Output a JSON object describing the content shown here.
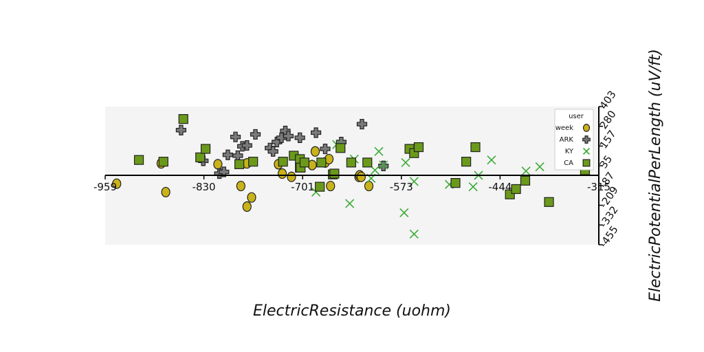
{
  "chart_data": {
    "type": "scatter",
    "title": "",
    "xlabel": "ElectricResistance (uohm)",
    "ylabel": "ElectricPotentialPerLength (uV/ft)",
    "xlim": [
      -959,
      -315
    ],
    "ylim": [
      -455,
      403
    ],
    "x_ticks": [
      "-959",
      "-830",
      "-701",
      "-573",
      "-444",
      "-315"
    ],
    "y_ticks": [
      "403",
      "280",
      "157",
      "35",
      "-87",
      "-209",
      "-332",
      "-455"
    ],
    "grid": false,
    "legend": {
      "title": "user",
      "placement": "top-right"
    },
    "series": [
      {
        "name": "week",
        "marker": "circle",
        "color": "#c9b21a",
        "x": [
          -944,
          -886,
          -880,
          -812,
          -782,
          -774,
          -774,
          -768,
          -733,
          -728,
          -716,
          -705,
          -689,
          -685,
          -672,
          -667,
          -665,
          -628,
          -627,
          -625,
          -615
        ],
        "y": [
          -55,
          70,
          -110,
          65,
          -70,
          -205,
          70,
          -145,
          65,
          10,
          -10,
          50,
          60,
          140,
          75,
          95,
          -70,
          -10,
          0,
          -10,
          -70
        ]
      },
      {
        "name": "ARK",
        "marker": "plus",
        "color": "#7a7a7a",
        "x": [
          -860,
          -831,
          -810,
          -804,
          -799,
          -789,
          -786,
          -780,
          -774,
          -763,
          -744,
          -740,
          -735,
          -729,
          -724,
          -720,
          -705,
          -684,
          -672,
          -651,
          -624,
          -596
        ],
        "y": [
          265,
          85,
          10,
          20,
          120,
          225,
          115,
          170,
          175,
          240,
          160,
          140,
          195,
          220,
          260,
          230,
          220,
          250,
          155,
          195,
          300,
          55
        ]
      },
      {
        "name": "KY",
        "marker": "x",
        "color": "#3aaa35",
        "x": [
          -684,
          -657,
          -640,
          -634,
          -612,
          -607,
          -602,
          -596,
          -569,
          -567,
          -556,
          -556,
          -510,
          -472,
          -479,
          -455,
          -410,
          -392
        ],
        "y": [
          -110,
          180,
          -185,
          95,
          -20,
          30,
          140,
          60,
          -245,
          75,
          -40,
          -385,
          -60,
          0,
          -75,
          90,
          25,
          50
        ]
      },
      {
        "name": "CA",
        "marker": "square",
        "color": "#6b9a1a",
        "x": [
          -915,
          -883,
          -857,
          -835,
          -828,
          -784,
          -766,
          -727,
          -713,
          -705,
          -705,
          -704,
          -699,
          -679,
          -677,
          -662,
          -660,
          -652,
          -638,
          -617,
          -562,
          -556,
          -550,
          -502,
          -488,
          -476,
          -431,
          -411,
          -423,
          -380,
          -333
        ],
        "y": [
          90,
          80,
          330,
          105,
          155,
          65,
          80,
          80,
          115,
          45,
          95,
          45,
          75,
          -75,
          75,
          5,
          10,
          160,
          75,
          75,
          155,
          130,
          165,
          -50,
          80,
          165,
          -125,
          -35,
          -90,
          -175,
          30
        ]
      }
    ]
  }
}
